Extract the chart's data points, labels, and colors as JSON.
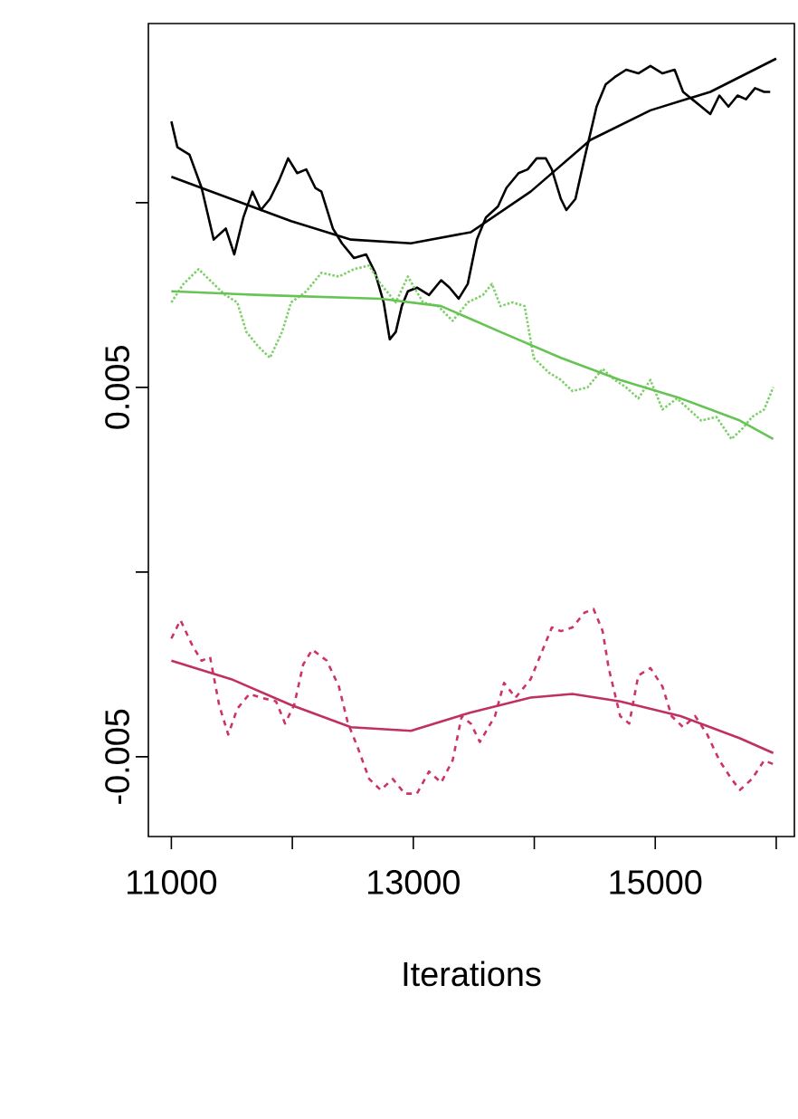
{
  "chart_data": {
    "type": "line",
    "xlabel": "Iterations",
    "xlim": [
      10810,
      16150
    ],
    "ylim": [
      -0.00716,
      0.01485
    ],
    "xticks": [
      11000,
      {
        "value": 12000,
        "label": null
      },
      13000,
      {
        "value": 14000,
        "label": null
      },
      15000,
      {
        "value": 16000,
        "label": null
      }
    ],
    "yticks": [
      -0.005,
      {
        "value": 0,
        "label": null
      },
      0.005,
      {
        "value": 0.01,
        "label": null
      }
    ],
    "marker": "none",
    "series": [
      {
        "color": "#000000",
        "line_style": "solid",
        "x": [
          11000,
          11050,
          11150,
          11250,
          11350,
          11450,
          11520,
          11595,
          11670,
          11740,
          11815,
          11890,
          11965,
          12040,
          12115,
          12190,
          12240,
          12335,
          12410,
          12510,
          12610,
          12685,
          12755,
          12805,
          12855,
          12905,
          12955,
          13030,
          13130,
          13230,
          13300,
          13375,
          13450,
          13525,
          13600,
          13700,
          13770,
          13870,
          13945,
          14020,
          14095,
          14145,
          14220,
          14265,
          14340,
          14415,
          14465,
          14515,
          14590,
          14665,
          14760,
          14860,
          14960,
          15060,
          15160,
          15230,
          15305,
          15380,
          15455,
          15530,
          15605,
          15680,
          15750,
          15825,
          15900,
          15950
        ],
        "values": [
          0.0122,
          0.0115,
          0.0113,
          0.0104,
          0.009,
          0.0093,
          0.0086,
          0.0096,
          0.0103,
          0.0098,
          0.0101,
          0.0106,
          0.0112,
          0.0108,
          0.0109,
          0.0104,
          0.0103,
          0.0093,
          0.0089,
          0.0085,
          0.0086,
          0.0081,
          0.0073,
          0.0063,
          0.0065,
          0.0072,
          0.0076,
          0.0077,
          0.0075,
          0.0079,
          0.0077,
          0.0074,
          0.0078,
          0.009,
          0.0096,
          0.0099,
          0.0104,
          0.0108,
          0.0109,
          0.0112,
          0.0112,
          0.0109,
          0.0101,
          0.0098,
          0.0101,
          0.0112,
          0.0119,
          0.0126,
          0.0132,
          0.0134,
          0.0136,
          0.0135,
          0.0137,
          0.0135,
          0.0136,
          0.013,
          0.0128,
          0.0126,
          0.0124,
          0.0129,
          0.0126,
          0.0129,
          0.0128,
          0.0131,
          0.013,
          0.013
        ]
      },
      {
        "color": "#000000",
        "line_style": "solid",
        "x": [
          11000,
          11495,
          11990,
          12485,
          12980,
          13475,
          13970,
          14465,
          14960,
          15455,
          16000
        ],
        "values": [
          0.0107,
          0.0101,
          0.0095,
          0.009,
          0.0089,
          0.0092,
          0.0103,
          0.0117,
          0.0125,
          0.013,
          0.0139
        ]
      },
      {
        "color": "#7fcf6a",
        "line_style": "dotted",
        "x": [
          11000,
          11100,
          11225,
          11350,
          11445,
          11545,
          11620,
          11720,
          11815,
          11915,
          11990,
          12115,
          12240,
          12385,
          12510,
          12635,
          12730,
          12855,
          12955,
          13080,
          13205,
          13325,
          13450,
          13575,
          13650,
          13720,
          13820,
          13920,
          13995,
          14120,
          14220,
          14315,
          14440,
          14565,
          14665,
          14760,
          14860,
          14960,
          15060,
          15180,
          15280,
          15380,
          15505,
          15630,
          15725,
          15800,
          15900,
          15975
        ],
        "values": [
          0.0073,
          0.0078,
          0.0082,
          0.0078,
          0.0075,
          0.0073,
          0.0065,
          0.0061,
          0.0058,
          0.0065,
          0.0073,
          0.0076,
          0.0081,
          0.008,
          0.0082,
          0.0083,
          0.0078,
          0.0073,
          0.008,
          0.0073,
          0.0072,
          0.0068,
          0.0073,
          0.0075,
          0.0078,
          0.0072,
          0.0073,
          0.0072,
          0.0058,
          0.0054,
          0.0052,
          0.0049,
          0.005,
          0.0055,
          0.0052,
          0.005,
          0.0047,
          0.0052,
          0.0044,
          0.0047,
          0.0044,
          0.0041,
          0.0042,
          0.0036,
          0.0039,
          0.0042,
          0.0044,
          0.005
        ]
      },
      {
        "color": "#66c455",
        "line_style": "solid",
        "x": [
          11000,
          11740,
          12730,
          13230,
          13720,
          14220,
          14710,
          15210,
          15700,
          15975
        ],
        "values": [
          0.0076,
          0.0075,
          0.0074,
          0.0072,
          0.0065,
          0.0058,
          0.0052,
          0.0047,
          0.0041,
          0.0036
        ]
      },
      {
        "color": "#cc3366",
        "line_style": "dashed",
        "x": [
          11000,
          11075,
          11175,
          11250,
          11320,
          11395,
          11470,
          11545,
          11645,
          11740,
          11865,
          11940,
          12015,
          12090,
          12165,
          12285,
          12385,
          12460,
          12535,
          12635,
          12730,
          12830,
          12930,
          13030,
          13130,
          13230,
          13325,
          13400,
          13475,
          13550,
          13675,
          13750,
          13845,
          13970,
          14045,
          14145,
          14220,
          14315,
          14415,
          14490,
          14565,
          14615,
          14710,
          14785,
          14860,
          14960,
          15060,
          15135,
          15230,
          15330,
          15430,
          15530,
          15630,
          15700,
          15800,
          15900,
          15975
        ],
        "values": [
          -0.0018,
          -0.0013,
          -0.002,
          -0.0024,
          -0.0023,
          -0.0036,
          -0.0044,
          -0.0037,
          -0.0033,
          -0.0034,
          -0.0035,
          -0.0041,
          -0.0036,
          -0.0025,
          -0.0021,
          -0.0024,
          -0.0031,
          -0.0041,
          -0.0047,
          -0.0056,
          -0.0059,
          -0.0056,
          -0.006,
          -0.006,
          -0.0054,
          -0.0057,
          -0.0051,
          -0.0039,
          -0.0041,
          -0.0046,
          -0.0039,
          -0.003,
          -0.0034,
          -0.0029,
          -0.0023,
          -0.0015,
          -0.0016,
          -0.0015,
          -0.0011,
          -0.001,
          -0.0016,
          -0.0026,
          -0.0039,
          -0.0041,
          -0.0028,
          -0.0026,
          -0.0031,
          -0.0039,
          -0.0042,
          -0.0039,
          -0.0044,
          -0.0051,
          -0.0056,
          -0.0059,
          -0.0056,
          -0.0051,
          -0.0052
        ]
      },
      {
        "color": "#c03060",
        "line_style": "solid",
        "x": [
          11000,
          11495,
          11990,
          12485,
          12980,
          13475,
          13970,
          14315,
          14710,
          15210,
          15700,
          15975
        ],
        "values": [
          -0.0024,
          -0.0029,
          -0.0036,
          -0.0042,
          -0.0043,
          -0.0038,
          -0.0034,
          -0.0033,
          -0.0035,
          -0.0039,
          -0.0045,
          -0.0049
        ]
      }
    ]
  }
}
